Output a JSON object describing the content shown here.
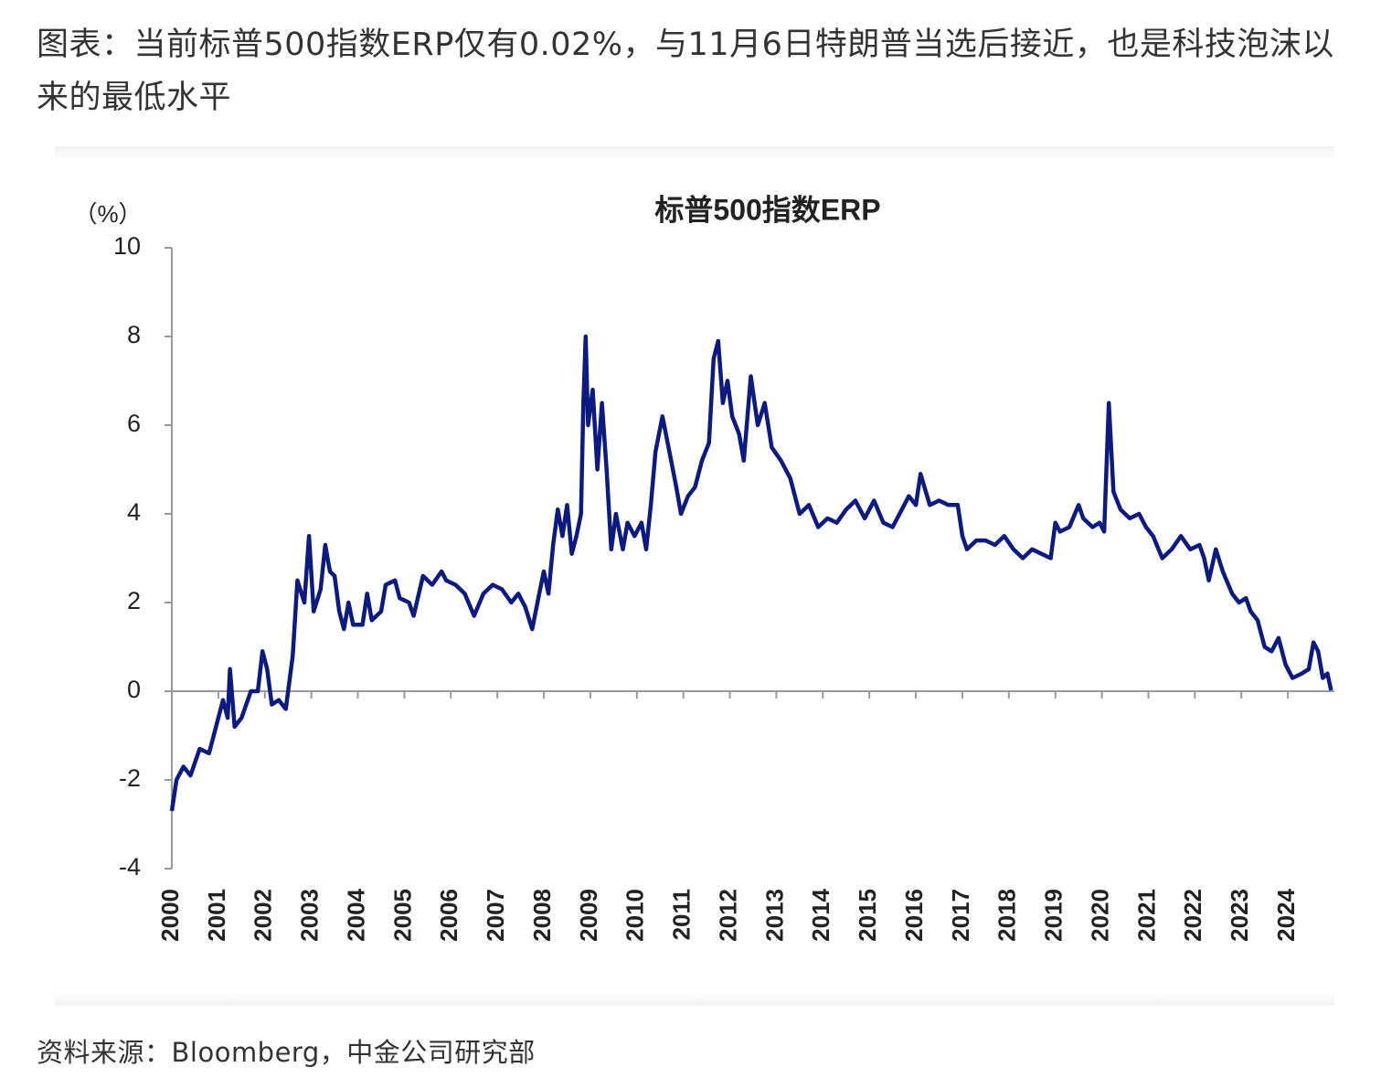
{
  "heading": "图表：当前标普500指数ERP仅有0.02%，与11月6日特朗普当选后接近，也是科技泡沫以来的最低水平",
  "chart_data": {
    "type": "line",
    "title": "标普500指数ERP",
    "y_unit": "（%）",
    "x": [
      2000.0,
      2000.1,
      2000.25,
      2000.4,
      2000.6,
      2000.8,
      2001.0,
      2001.1,
      2001.2,
      2001.25,
      2001.35,
      2001.5,
      2001.7,
      2001.85,
      2001.95,
      2002.05,
      2002.15,
      2002.3,
      2002.45,
      2002.6,
      2002.7,
      2002.85,
      2002.95,
      2003.05,
      2003.2,
      2003.3,
      2003.4,
      2003.5,
      2003.6,
      2003.7,
      2003.8,
      2003.9,
      2004.1,
      2004.2,
      2004.3,
      2004.5,
      2004.6,
      2004.8,
      2004.9,
      2005.1,
      2005.2,
      2005.4,
      2005.6,
      2005.8,
      2005.9,
      2006.1,
      2006.3,
      2006.5,
      2006.7,
      2006.9,
      2007.1,
      2007.3,
      2007.45,
      2007.6,
      2007.75,
      2007.9,
      2008.0,
      2008.1,
      2008.2,
      2008.3,
      2008.4,
      2008.5,
      2008.6,
      2008.7,
      2008.8,
      2008.85,
      2008.9,
      2008.95,
      2009.05,
      2009.15,
      2009.25,
      2009.35,
      2009.45,
      2009.55,
      2009.7,
      2009.8,
      2009.95,
      2010.1,
      2010.2,
      2010.3,
      2010.4,
      2010.55,
      2010.7,
      2010.85,
      2010.95,
      2011.1,
      2011.25,
      2011.4,
      2011.55,
      2011.65,
      2011.75,
      2011.85,
      2011.95,
      2012.05,
      2012.2,
      2012.3,
      2012.45,
      2012.6,
      2012.75,
      2012.9,
      2013.1,
      2013.3,
      2013.5,
      2013.7,
      2013.9,
      2014.1,
      2014.3,
      2014.5,
      2014.7,
      2014.9,
      2015.1,
      2015.3,
      2015.5,
      2015.7,
      2015.85,
      2016.0,
      2016.1,
      2016.3,
      2016.5,
      2016.7,
      2016.9,
      2017.0,
      2017.1,
      2017.3,
      2017.5,
      2017.7,
      2017.9,
      2018.1,
      2018.3,
      2018.5,
      2018.7,
      2018.9,
      2019.0,
      2019.1,
      2019.3,
      2019.5,
      2019.6,
      2019.8,
      2019.95,
      2020.05,
      2020.15,
      2020.25,
      2020.4,
      2020.6,
      2020.8,
      2020.95,
      2021.1,
      2021.3,
      2021.5,
      2021.7,
      2021.9,
      2022.1,
      2022.2,
      2022.3,
      2022.45,
      2022.6,
      2022.8,
      2022.95,
      2023.1,
      2023.2,
      2023.35,
      2023.5,
      2023.65,
      2023.8,
      2023.95,
      2024.1,
      2024.3,
      2024.45,
      2024.55,
      2024.65,
      2024.75,
      2024.85,
      2024.93
    ],
    "series": [
      {
        "color": "#0d1a80",
        "values": [
          -2.7,
          -2.0,
          -1.7,
          -1.9,
          -1.3,
          -1.4,
          -0.6,
          -0.2,
          -0.6,
          0.5,
          -0.8,
          -0.6,
          0.0,
          0.0,
          0.9,
          0.5,
          -0.3,
          -0.2,
          -0.4,
          0.8,
          2.5,
          2.0,
          3.5,
          1.8,
          2.3,
          3.3,
          2.7,
          2.6,
          1.8,
          1.4,
          2.0,
          1.5,
          1.5,
          2.2,
          1.6,
          1.8,
          2.4,
          2.5,
          2.1,
          2.0,
          1.7,
          2.6,
          2.4,
          2.7,
          2.5,
          2.4,
          2.2,
          1.7,
          2.2,
          2.4,
          2.3,
          2.0,
          2.2,
          1.9,
          1.4,
          2.2,
          2.7,
          2.2,
          3.3,
          4.1,
          3.5,
          4.2,
          3.1,
          3.5,
          4.0,
          6.5,
          8.0,
          6.0,
          6.8,
          5.0,
          6.5,
          5.0,
          3.2,
          4.0,
          3.2,
          3.8,
          3.5,
          3.8,
          3.2,
          4.2,
          5.4,
          6.2,
          5.4,
          4.6,
          4.0,
          4.4,
          4.6,
          5.2,
          5.6,
          7.5,
          7.9,
          6.5,
          7.0,
          6.2,
          5.8,
          5.2,
          7.1,
          6.0,
          6.5,
          5.5,
          5.2,
          4.8,
          4.0,
          4.2,
          3.7,
          3.9,
          3.8,
          4.1,
          4.3,
          3.9,
          4.3,
          3.8,
          3.7,
          4.1,
          4.4,
          4.2,
          4.9,
          4.2,
          4.3,
          4.2,
          4.2,
          3.5,
          3.2,
          3.4,
          3.4,
          3.3,
          3.5,
          3.2,
          3.0,
          3.2,
          3.1,
          3.0,
          3.8,
          3.6,
          3.7,
          4.2,
          3.9,
          3.7,
          3.8,
          3.6,
          6.5,
          4.5,
          4.1,
          3.9,
          4.0,
          3.7,
          3.5,
          3.0,
          3.2,
          3.5,
          3.2,
          3.3,
          3.0,
          2.5,
          3.2,
          2.7,
          2.2,
          2.0,
          2.1,
          1.8,
          1.6,
          1.0,
          0.9,
          1.2,
          0.6,
          0.3,
          0.4,
          0.5,
          1.1,
          0.9,
          0.3,
          0.4,
          0.02
        ]
      }
    ],
    "xlim": [
      2000,
      2025
    ],
    "xticks": [
      2000,
      2001,
      2002,
      2003,
      2004,
      2005,
      2006,
      2007,
      2008,
      2009,
      2010,
      2011,
      2012,
      2013,
      2014,
      2015,
      2016,
      2017,
      2018,
      2019,
      2020,
      2021,
      2022,
      2023,
      2024
    ],
    "ylim": [
      -4,
      10
    ],
    "yticks": [
      -4,
      -2,
      0,
      2,
      4,
      6,
      8,
      10
    ],
    "negative_tick_color": "#e02020"
  },
  "source": "资料来源：Bloomberg，中金公司研究部"
}
